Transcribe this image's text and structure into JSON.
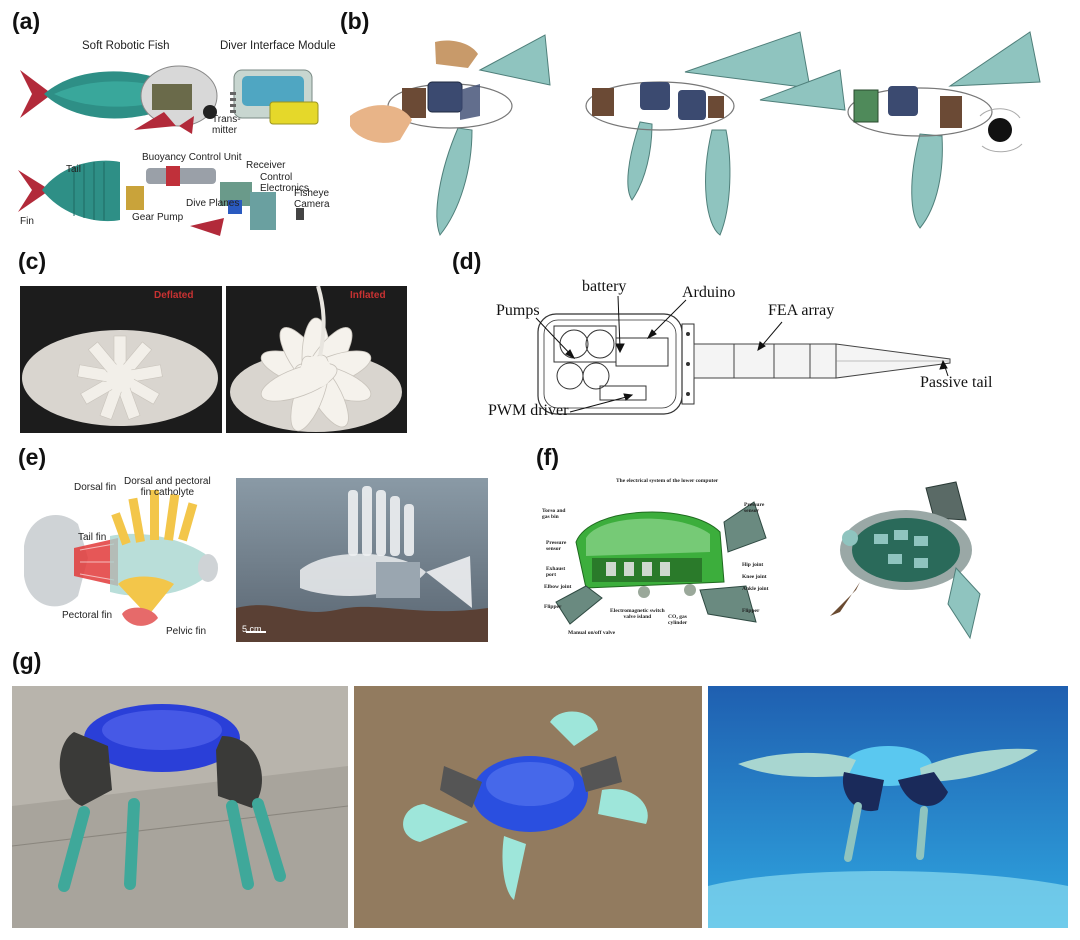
{
  "panel_labels": {
    "a": "(a)",
    "b": "(b)",
    "c": "(c)",
    "d": "(d)",
    "e": "(e)",
    "f": "(f)",
    "g": "(g)"
  },
  "panel_a": {
    "soft_robotic_fish": "Soft Robotic Fish",
    "diver_interface_module": "Diver Interface Module",
    "transmitter": "Trans-\nmitter",
    "tail": "Tail",
    "fin": "Fin",
    "buoyancy_control_unit": "Buoyancy Control Unit",
    "receiver": "Receiver",
    "control_electronics": "Control\nElectronics",
    "gear_pump": "Gear Pump",
    "dive_planes": "Dive Planes",
    "fisheye_camera": "Fisheye\nCamera"
  },
  "panel_c": {
    "deflated": "Deflated",
    "inflated": "Inflated"
  },
  "panel_d": {
    "battery": "battery",
    "arduino": "Arduino",
    "pumps": "Pumps",
    "fea_array": "FEA array",
    "pwm_driver": "PWM driver",
    "passive_tail": "Passive tail"
  },
  "panel_e": {
    "dorsal_fin": "Dorsal fin",
    "dorsal_pectoral_catholyte": "Dorsal and pectoral\nfin catholyte",
    "tail_fin": "Tail fin",
    "pectoral_fin": "Pectoral fin",
    "pelvic_fin": "Pelvic fin",
    "scale_bar": "5 cm"
  },
  "panel_f": {
    "title": "The electrical system of the lower computer",
    "torso_gas_bin": "Torso and\ngas bin",
    "pressure_sensor_left": "Pressure\nsensor",
    "exhaust_port": "Exhaust\nport",
    "elbow_joint": "Elbow joint",
    "flipper_left": "Flipper",
    "manual_valve": "Manual on/off valve",
    "electromagnetic_valve": "Electromagnetic switch\nvalve island",
    "co2_cylinder": "CO₂ gas\ncylinder",
    "pressure_sensor_right": "Pressure\nsensor",
    "hip_joint": "Hip joint",
    "knee_joint": "Knee joint",
    "ankle_joint": "Ankle joint",
    "flipper_right": "Flipper"
  },
  "colors": {
    "teal_fin": "#8fc4bf",
    "fish_red": "#b22a3a",
    "turtle_blue": "#2a3fd8",
    "water_blue": "#1f8fd0",
    "lionfish_yellow": "#f3c64a",
    "turtle_green": "#3cae3c"
  }
}
